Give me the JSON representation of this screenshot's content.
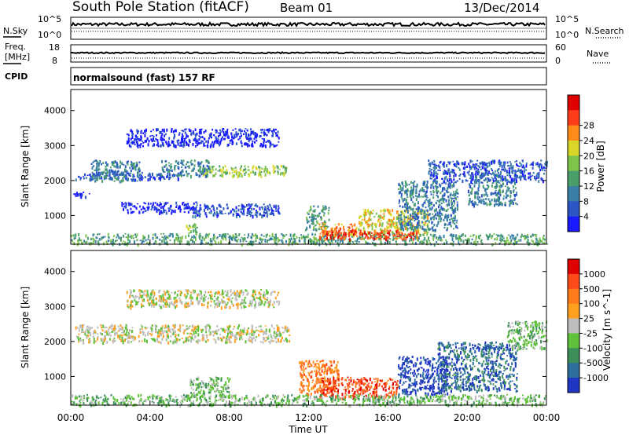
{
  "header": {
    "station": "South Pole Station (fitACF)",
    "beam": "Beam 01",
    "date": "13/Dec/2014"
  },
  "left_labels": {
    "nsky": "N.Sky",
    "freq_line1": "Freq.",
    "freq_line2": "[MHz]",
    "cpid": "CPID"
  },
  "right_labels": {
    "nsearch": "N.Search",
    "nave": "Nave"
  },
  "noise_panel": {
    "left_ticks": [
      "10^5",
      "10^0"
    ],
    "right_ticks": [
      "10^5",
      "10^0"
    ]
  },
  "freq_panel": {
    "left_ticks": [
      "18",
      "8"
    ],
    "right_ticks": [
      "60",
      "0"
    ]
  },
  "cpid_text": "normalsound (fast) 157 RF",
  "chart_data": [
    {
      "type": "heatmap",
      "ylabel": "Slant Range [km]",
      "y_ticks": [
        "1000",
        "2000",
        "3000",
        "4000"
      ],
      "ylim": [
        180,
        4600
      ],
      "colorbar": {
        "label": "Power [dB]",
        "ticks": [
          "4",
          "8",
          "12",
          "16",
          "20",
          "24",
          "28"
        ],
        "colors": [
          "#1a1aff",
          "#2d56c4",
          "#3a7fa6",
          "#4a9e6a",
          "#7ec34c",
          "#d9d629",
          "#ff8c1a",
          "#ff3d1a",
          "#e00000"
        ]
      },
      "scatter_regions": [
        {
          "x0": 6.6,
          "x1": 10.9,
          "y0": 2150,
          "y1": 2450,
          "level": 4
        },
        {
          "x0": 0.2,
          "x1": 5.5,
          "y0": 2050,
          "y1": 2250,
          "level": 1
        },
        {
          "x0": 1.0,
          "x1": 3.5,
          "y0": 2000,
          "y1": 2600,
          "level": 2
        },
        {
          "x0": 4.5,
          "x1": 7.0,
          "y0": 2150,
          "y1": 2600,
          "level": 2
        },
        {
          "x0": 2.8,
          "x1": 10.5,
          "y0": 3000,
          "y1": 3500,
          "level": 0
        },
        {
          "x0": 0.1,
          "x1": 1.0,
          "y0": 1550,
          "y1": 1700,
          "level": 0
        },
        {
          "x0": 2.5,
          "x1": 6.5,
          "y0": 1100,
          "y1": 1400,
          "level": 0
        },
        {
          "x0": 6.0,
          "x1": 10.5,
          "y0": 1000,
          "y1": 1350,
          "level": 1
        },
        {
          "x0": 5.8,
          "x1": 6.4,
          "y0": 500,
          "y1": 800,
          "level": 4
        },
        {
          "x0": 11.8,
          "x1": 13.0,
          "y0": 600,
          "y1": 1300,
          "level": 3
        },
        {
          "x0": 12.5,
          "x1": 14.5,
          "y0": 400,
          "y1": 800,
          "level": 6
        },
        {
          "x0": 14.5,
          "x1": 18.0,
          "y0": 500,
          "y1": 1200,
          "level": 5
        },
        {
          "x0": 16.5,
          "x1": 19.5,
          "y0": 600,
          "y1": 2000,
          "level": 2
        },
        {
          "x0": 20.0,
          "x1": 22.5,
          "y0": 1300,
          "y1": 2200,
          "level": 2
        },
        {
          "x0": 18.0,
          "x1": 24.0,
          "y0": 2000,
          "y1": 2600,
          "level": 1
        },
        {
          "x0": 0.0,
          "x1": 24.0,
          "y0": 200,
          "y1": 500,
          "level": 3
        },
        {
          "x0": 12.5,
          "x1": 17.5,
          "y0": 350,
          "y1": 600,
          "level": 7
        }
      ]
    },
    {
      "type": "heatmap",
      "ylabel": "Slant Range [km]",
      "y_ticks": [
        "1000",
        "2000",
        "3000",
        "4000"
      ],
      "ylim": [
        180,
        4600
      ],
      "xlabel": "Time UT",
      "x_ticks": [
        "00:00",
        "04:00",
        "08:00",
        "12:00",
        "16:00",
        "20:00",
        "00:00"
      ],
      "xlim": [
        0,
        24
      ],
      "colorbar": {
        "label": "Velocity [m s^-1]",
        "ticks": [
          "1000",
          "500",
          "100",
          "25",
          "-25",
          "-100",
          "-500",
          "-1000"
        ],
        "colors": [
          "#1f35c4",
          "#2f6f9e",
          "#3c8f5a",
          "#5fc03a",
          "#bebebe",
          "#ffa020",
          "#ff7a1a",
          "#ff4a1a",
          "#e00000"
        ]
      },
      "scatter_regions": [
        {
          "x0": 0.2,
          "x1": 11.0,
          "y0": 2000,
          "y1": 2500,
          "level": 4
        },
        {
          "x0": 2.8,
          "x1": 10.5,
          "y0": 3000,
          "y1": 3500,
          "level": 4
        },
        {
          "x0": 11.5,
          "x1": 13.5,
          "y0": 500,
          "y1": 1500,
          "level": 6
        },
        {
          "x0": 12.5,
          "x1": 16.5,
          "y0": 400,
          "y1": 1000,
          "level": 7
        },
        {
          "x0": 16.5,
          "x1": 19.0,
          "y0": 500,
          "y1": 1600,
          "level": 0
        },
        {
          "x0": 18.5,
          "x1": 22.5,
          "y0": 600,
          "y1": 2000,
          "level": 1
        },
        {
          "x0": 6.0,
          "x1": 8.0,
          "y0": 500,
          "y1": 1000,
          "level": 3
        },
        {
          "x0": 22.0,
          "x1": 24.0,
          "y0": 1800,
          "y1": 2600,
          "level": 3
        },
        {
          "x0": 0.0,
          "x1": 24.0,
          "y0": 200,
          "y1": 500,
          "level": 3
        }
      ]
    }
  ]
}
